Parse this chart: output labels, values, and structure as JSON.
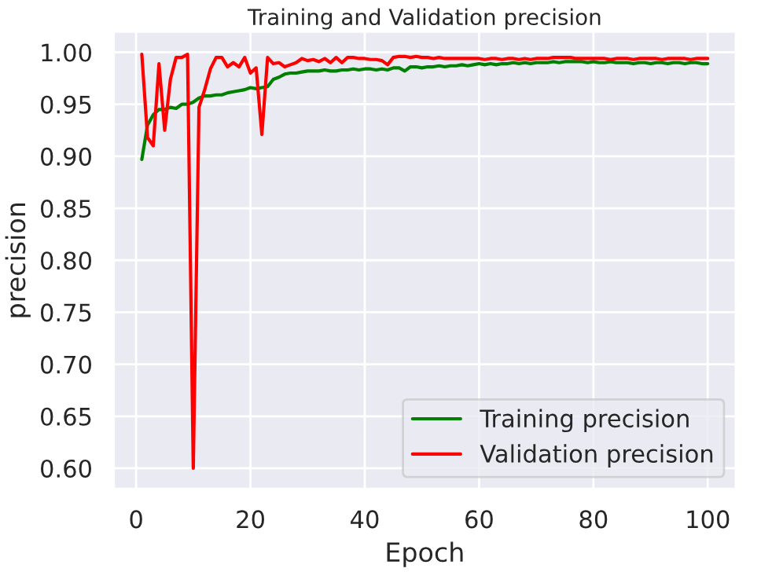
{
  "chart_data": {
    "type": "line",
    "title": "Training and Validation precision",
    "xlabel": "Epoch",
    "ylabel": "precision",
    "x": [
      1,
      2,
      3,
      4,
      5,
      6,
      7,
      8,
      9,
      10,
      11,
      12,
      13,
      14,
      15,
      16,
      17,
      18,
      19,
      20,
      21,
      22,
      23,
      24,
      25,
      26,
      27,
      28,
      29,
      30,
      31,
      32,
      33,
      34,
      35,
      36,
      37,
      38,
      39,
      40,
      41,
      42,
      43,
      44,
      45,
      46,
      47,
      48,
      49,
      50,
      51,
      52,
      53,
      54,
      55,
      56,
      57,
      58,
      59,
      60,
      61,
      62,
      63,
      64,
      65,
      66,
      67,
      68,
      69,
      70,
      71,
      72,
      73,
      74,
      75,
      76,
      77,
      78,
      79,
      80,
      81,
      82,
      83,
      84,
      85,
      86,
      87,
      88,
      89,
      90,
      91,
      92,
      93,
      94,
      95,
      96,
      97,
      98,
      99,
      100
    ],
    "series": [
      {
        "name": "Training precision",
        "color": "#008000",
        "values": [
          0.897,
          0.93,
          0.94,
          0.945,
          0.945,
          0.947,
          0.946,
          0.95,
          0.95,
          0.952,
          0.956,
          0.958,
          0.958,
          0.959,
          0.959,
          0.961,
          0.962,
          0.963,
          0.964,
          0.966,
          0.965,
          0.966,
          0.967,
          0.974,
          0.976,
          0.979,
          0.98,
          0.98,
          0.981,
          0.982,
          0.982,
          0.982,
          0.983,
          0.982,
          0.982,
          0.983,
          0.983,
          0.984,
          0.983,
          0.984,
          0.984,
          0.983,
          0.984,
          0.983,
          0.985,
          0.985,
          0.982,
          0.986,
          0.986,
          0.985,
          0.986,
          0.986,
          0.987,
          0.986,
          0.987,
          0.987,
          0.988,
          0.987,
          0.988,
          0.989,
          0.988,
          0.989,
          0.988,
          0.989,
          0.989,
          0.99,
          0.989,
          0.99,
          0.989,
          0.99,
          0.99,
          0.99,
          0.991,
          0.99,
          0.991,
          0.991,
          0.991,
          0.991,
          0.99,
          0.991,
          0.99,
          0.99,
          0.991,
          0.99,
          0.99,
          0.99,
          0.989,
          0.99,
          0.99,
          0.989,
          0.99,
          0.99,
          0.989,
          0.99,
          0.99,
          0.989,
          0.99,
          0.99,
          0.989,
          0.989
        ]
      },
      {
        "name": "Validation precision",
        "color": "#ff0000",
        "values": [
          0.998,
          0.918,
          0.91,
          0.989,
          0.925,
          0.974,
          0.995,
          0.995,
          0.998,
          0.6,
          0.947,
          0.964,
          0.984,
          0.995,
          0.995,
          0.986,
          0.99,
          0.986,
          0.995,
          0.98,
          0.985,
          0.921,
          0.995,
          0.989,
          0.99,
          0.986,
          0.988,
          0.99,
          0.994,
          0.992,
          0.993,
          0.991,
          0.994,
          0.99,
          0.995,
          0.99,
          0.995,
          0.995,
          0.994,
          0.994,
          0.993,
          0.993,
          0.992,
          0.988,
          0.995,
          0.996,
          0.996,
          0.995,
          0.996,
          0.995,
          0.995,
          0.994,
          0.995,
          0.994,
          0.994,
          0.994,
          0.994,
          0.994,
          0.994,
          0.994,
          0.993,
          0.994,
          0.994,
          0.993,
          0.994,
          0.994,
          0.993,
          0.994,
          0.993,
          0.994,
          0.994,
          0.994,
          0.995,
          0.995,
          0.995,
          0.995,
          0.994,
          0.994,
          0.994,
          0.994,
          0.994,
          0.994,
          0.993,
          0.994,
          0.994,
          0.994,
          0.993,
          0.994,
          0.994,
          0.994,
          0.994,
          0.993,
          0.994,
          0.994,
          0.994,
          0.994,
          0.993,
          0.994,
          0.994,
          0.994
        ]
      }
    ],
    "xlim": [
      -3.95,
      104.95
    ],
    "xticks": [
      0,
      20,
      40,
      60,
      80,
      100
    ],
    "ylim": [
      0.58,
      1.02
    ],
    "yticks": [
      {
        "value": 0.6,
        "label": "0.60"
      },
      {
        "value": 0.65,
        "label": "0.65"
      },
      {
        "value": 0.7,
        "label": "0.70"
      },
      {
        "value": 0.75,
        "label": "0.75"
      },
      {
        "value": 0.8,
        "label": "0.80"
      },
      {
        "value": 0.85,
        "label": "0.85"
      },
      {
        "value": 0.9,
        "label": "0.90"
      },
      {
        "value": 0.95,
        "label": "0.95"
      },
      {
        "value": 1.0,
        "label": "1.00"
      }
    ],
    "grid": true,
    "legend": "lower right",
    "marker": "none",
    "line_style": "solid"
  }
}
